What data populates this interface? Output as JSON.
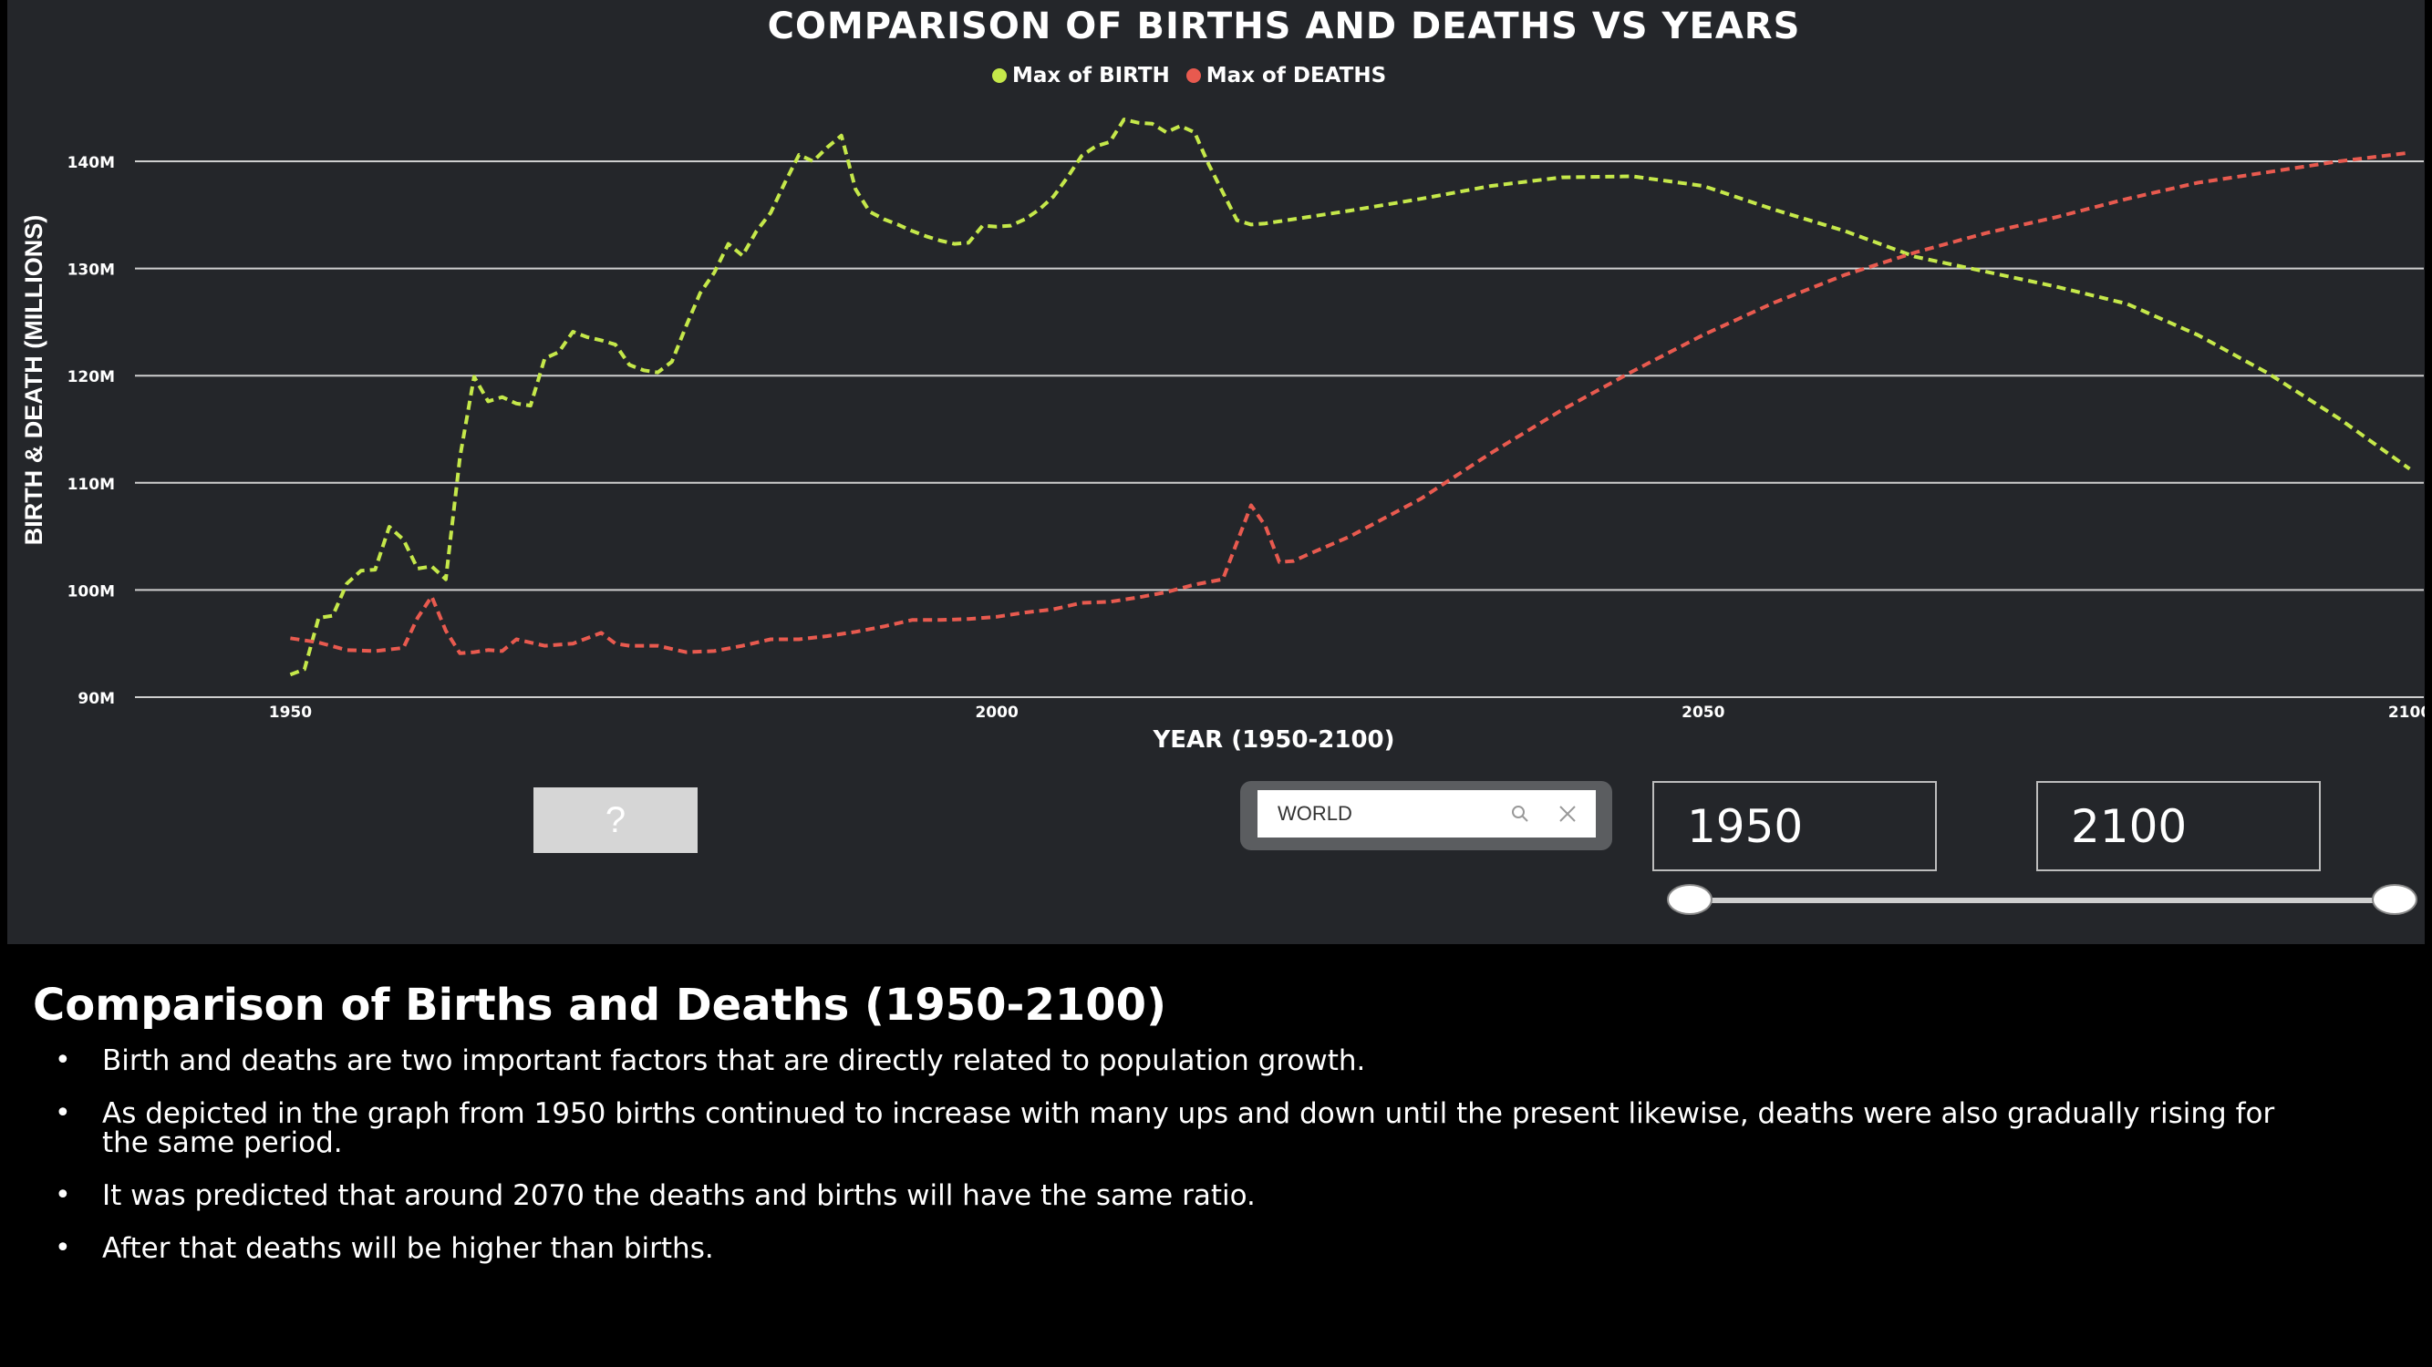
{
  "page": {
    "notes_title": "Comparison of Births and Deaths (1950-2100)",
    "bullets": [
      "Birth and deaths are two important factors that are directly related to population growth.",
      "As depicted in the graph from 1950 births continued to increase with many ups and down until the present likewise, deaths were also gradually rising for the same period.",
      "It was predicted that around 2070 the deaths and births will have the same ratio.",
      "After that deaths will be higher than births."
    ]
  },
  "controls": {
    "help_button_label": "?",
    "search_value": "WORLD",
    "year_start": "1950",
    "year_end": "2100",
    "slider_range": [
      1950,
      2100
    ]
  },
  "chart_data": {
    "type": "line",
    "title": "COMPARISON OF BIRTHS AND DEATHS VS YEARS",
    "xlabel": "YEAR (1950-2100)",
    "ylabel": "BIRTH & DEATH (MILLIONS)",
    "xlim": [
      1939,
      2101
    ],
    "ylim": [
      90,
      140
    ],
    "x_ticks": [
      1950,
      2000,
      2050,
      2100
    ],
    "x_tick_labels": [
      "1950",
      "2000",
      "2050",
      "2100"
    ],
    "y_ticks": [
      90,
      100,
      110,
      120,
      130,
      140
    ],
    "y_tick_labels": [
      "90M",
      "100M",
      "110M",
      "120M",
      "130M",
      "140M"
    ],
    "grid": "horizontal",
    "legend": "top-center",
    "series": [
      {
        "name": "Max of BIRTH",
        "color": "#c5e84a",
        "x": [
          1950,
          1951,
          1952,
          1953,
          1954,
          1955,
          1956,
          1957,
          1958,
          1959,
          1960,
          1961,
          1962,
          1963,
          1964,
          1965,
          1966,
          1967,
          1968,
          1969,
          1970,
          1971,
          1972,
          1973,
          1974,
          1975,
          1976,
          1977,
          1978,
          1979,
          1980,
          1981,
          1982,
          1983,
          1984,
          1985,
          1986,
          1987,
          1988,
          1989,
          1990,
          1991,
          1992,
          1993,
          1994,
          1995,
          1996,
          1997,
          1998,
          1999,
          2000,
          2001,
          2002,
          2003,
          2004,
          2005,
          2006,
          2007,
          2008,
          2009,
          2010,
          2011,
          2012,
          2013,
          2014,
          2015,
          2016,
          2017,
          2018,
          2019,
          2020,
          2025,
          2030,
          2035,
          2040,
          2045,
          2050,
          2055,
          2060,
          2065,
          2070,
          2075,
          2080,
          2085,
          2090,
          2095,
          2100
        ],
        "values": [
          92.1,
          92.6,
          97.4,
          97.6,
          100.6,
          101.8,
          101.9,
          105.9,
          104.7,
          102.0,
          102.2,
          101.0,
          112.4,
          119.9,
          117.6,
          118.0,
          117.4,
          117.2,
          121.6,
          122.2,
          124.1,
          123.6,
          123.3,
          122.9,
          121.0,
          120.5,
          120.3,
          121.3,
          124.6,
          127.7,
          129.6,
          132.3,
          131.2,
          133.5,
          135.2,
          138.0,
          140.6,
          140.0,
          141.3,
          142.4,
          137.4,
          135.3,
          134.6,
          134.1,
          133.5,
          133.0,
          132.6,
          132.3,
          132.4,
          134.0,
          133.9,
          134.0,
          134.6,
          135.5,
          136.7,
          138.5,
          140.5,
          141.4,
          141.8,
          143.9,
          143.6,
          143.5,
          142.7,
          143.3,
          142.7,
          139.7,
          137.1,
          134.5,
          134.1,
          134.2,
          134.4,
          135.4,
          136.5,
          137.7,
          138.5,
          138.6,
          137.7,
          135.5,
          133.5,
          131.1,
          129.7,
          128.3,
          126.7,
          123.8,
          120.2,
          116.0,
          111.3
        ]
      },
      {
        "name": "Max of DEATHS",
        "color": "#e85a4f",
        "x": [
          1950,
          1952,
          1954,
          1956,
          1958,
          1959,
          1960,
          1961,
          1962,
          1963,
          1964,
          1965,
          1966,
          1968,
          1970,
          1972,
          1973,
          1974,
          1976,
          1978,
          1980,
          1982,
          1984,
          1986,
          1988,
          1990,
          1992,
          1994,
          1996,
          1998,
          2000,
          2002,
          2004,
          2006,
          2008,
          2010,
          2012,
          2014,
          2016,
          2018,
          2019,
          2020,
          2021,
          2022,
          2025,
          2030,
          2035,
          2040,
          2045,
          2050,
          2055,
          2060,
          2065,
          2070,
          2075,
          2080,
          2085,
          2090,
          2095,
          2100
        ],
        "values": [
          95.5,
          95.1,
          94.4,
          94.3,
          94.6,
          97.4,
          99.4,
          96.2,
          94.1,
          94.2,
          94.4,
          94.3,
          95.4,
          94.8,
          95.0,
          96.0,
          95.0,
          94.8,
          94.8,
          94.2,
          94.3,
          94.8,
          95.4,
          95.4,
          95.7,
          96.1,
          96.6,
          97.2,
          97.2,
          97.3,
          97.5,
          97.9,
          98.2,
          98.8,
          98.9,
          99.3,
          99.8,
          100.5,
          101.0,
          107.9,
          106.0,
          102.6,
          102.7,
          103.3,
          105.0,
          108.5,
          112.8,
          116.8,
          120.4,
          123.8,
          126.8,
          129.4,
          131.5,
          133.3,
          134.8,
          136.5,
          138.0,
          139.0,
          140.0,
          140.8
        ]
      }
    ]
  }
}
